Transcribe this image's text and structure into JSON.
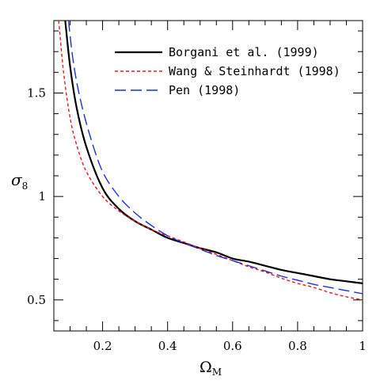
{
  "chart_data": {
    "type": "line",
    "xlabel": "Ω",
    "xlabel_sub": "M",
    "ylabel": "σ",
    "ylabel_sub": "8",
    "xlim": [
      0.05,
      1.0
    ],
    "ylim": [
      0.35,
      1.85
    ],
    "x_ticks": [
      0.2,
      0.4,
      0.6,
      0.8,
      1.0
    ],
    "x_tick_labels": [
      "0.2",
      "0.4",
      "0.6",
      "0.8",
      "1"
    ],
    "x_minor_step": 0.05,
    "y_ticks": [
      0.5,
      1.0,
      1.5
    ],
    "y_tick_labels": [
      "0.5",
      "1",
      "1.5"
    ],
    "y_minor_step": 0.1,
    "grid": false,
    "legend_position": "top-right",
    "series": [
      {
        "name": "Borgani et al. (1999)",
        "color": "#000000",
        "style": "solid",
        "x": [
          0.085,
          0.1,
          0.12,
          0.15,
          0.2,
          0.25,
          0.3,
          0.35,
          0.4,
          0.45,
          0.5,
          0.55,
          0.6,
          0.65,
          0.7,
          0.75,
          0.8,
          0.85,
          0.9,
          0.95,
          1.0
        ],
        "y": [
          1.85,
          1.63,
          1.43,
          1.24,
          1.04,
          0.94,
          0.88,
          0.84,
          0.8,
          0.775,
          0.75,
          0.73,
          0.7,
          0.685,
          0.665,
          0.645,
          0.63,
          0.615,
          0.6,
          0.59,
          0.58
        ]
      },
      {
        "name": "Wang & Steinhardt (1998)",
        "color": "#e8171f",
        "style": "short-dash",
        "x": [
          0.065,
          0.08,
          0.1,
          0.12,
          0.15,
          0.2,
          0.25,
          0.3,
          0.35,
          0.4,
          0.45,
          0.5,
          0.55,
          0.6,
          0.65,
          0.7,
          0.75,
          0.8,
          0.85,
          0.9,
          0.95,
          1.0
        ],
        "y": [
          1.85,
          1.6,
          1.38,
          1.25,
          1.12,
          1.0,
          0.93,
          0.88,
          0.84,
          0.81,
          0.78,
          0.75,
          0.72,
          0.69,
          0.66,
          0.635,
          0.605,
          0.58,
          0.56,
          0.535,
          0.515,
          0.5
        ]
      },
      {
        "name": "Pen (1998)",
        "color": "#1f2fd8",
        "style": "long-dash",
        "x": [
          0.095,
          0.11,
          0.13,
          0.16,
          0.2,
          0.25,
          0.3,
          0.35,
          0.4,
          0.45,
          0.5,
          0.55,
          0.6,
          0.65,
          0.7,
          0.75,
          0.8,
          0.85,
          0.9,
          0.95,
          1.0
        ],
        "y": [
          1.85,
          1.65,
          1.48,
          1.3,
          1.12,
          1.0,
          0.92,
          0.86,
          0.81,
          0.775,
          0.745,
          0.715,
          0.69,
          0.665,
          0.64,
          0.615,
          0.595,
          0.575,
          0.56,
          0.545,
          0.53
        ]
      }
    ]
  }
}
